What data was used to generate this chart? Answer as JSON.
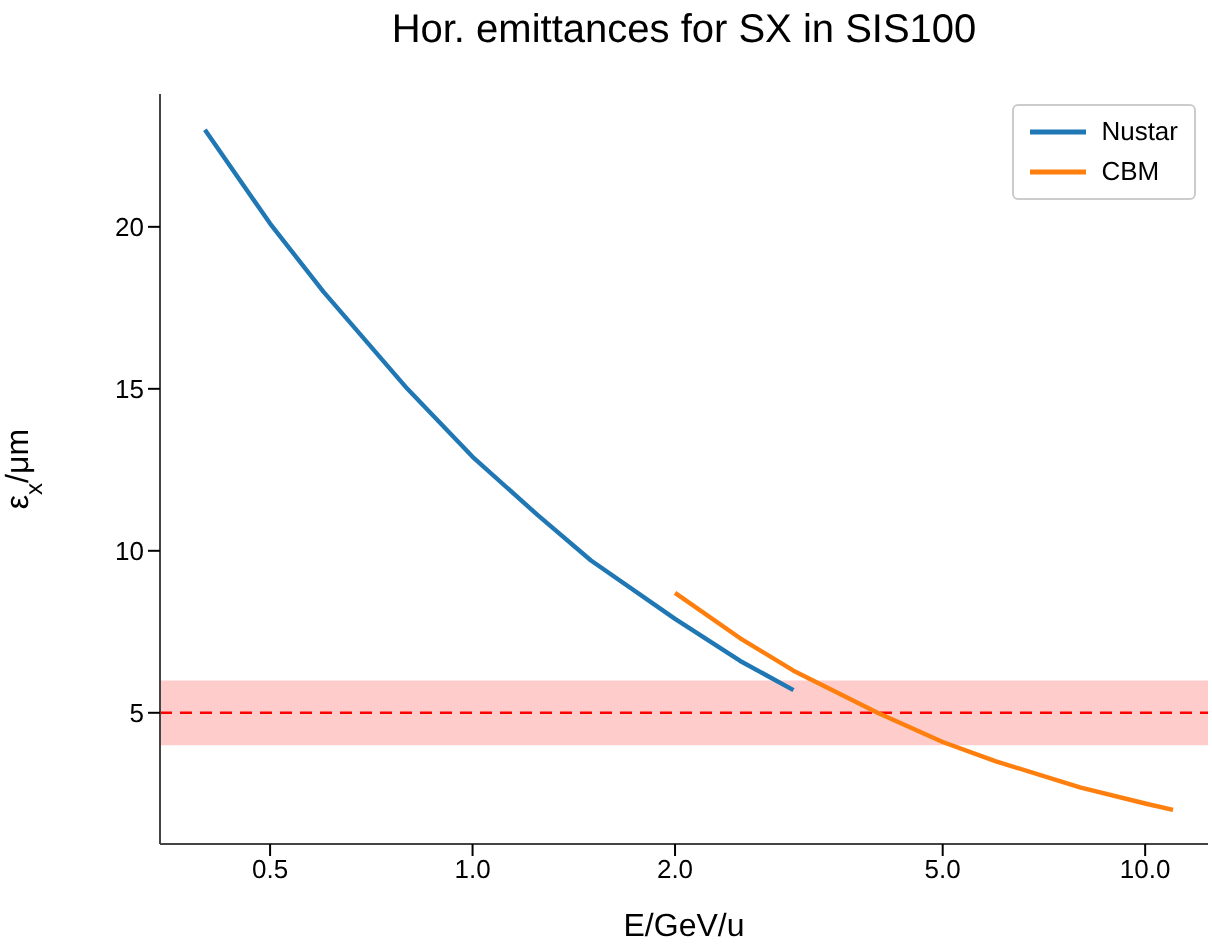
{
  "chart_data": {
    "type": "line",
    "title": "Hor. emittances for SX in SIS100",
    "xlabel": "E/GeV/u",
    "ylabel": "ε$_{x}$/μm",
    "log": "x",
    "xlim": [
      0.343,
      12.4
    ],
    "xticks": [
      {
        "value": 0.5,
        "label": "0.5"
      },
      {
        "value": 1,
        "label": "1.0"
      },
      {
        "value": 2,
        "label": "2.0"
      },
      {
        "value": 5,
        "label": "5.0"
      },
      {
        "value": 10,
        "label": "10.0"
      }
    ],
    "ylim": [
      0.95,
      24.1
    ],
    "yticks": [
      5,
      10,
      15,
      20
    ],
    "grid": false,
    "legend": "top right",
    "marker": "none",
    "line_style": "solid",
    "series": [
      {
        "name": "Nustar",
        "color": "#1f77b4",
        "x": [
          0.4,
          0.5,
          0.6,
          0.8,
          1.0,
          1.25,
          1.5,
          2.0,
          2.5,
          3.0
        ],
        "values": [
          23.0,
          20.1,
          18.0,
          15.0,
          12.9,
          11.1,
          9.7,
          7.9,
          6.6,
          5.7
        ]
      },
      {
        "name": "CBM",
        "color": "#ff7f0e",
        "x": [
          2.0,
          2.5,
          3.0,
          4.0,
          5.0,
          6.0,
          8.0,
          10.0,
          11.0
        ],
        "values": [
          8.7,
          7.3,
          6.3,
          5.0,
          4.1,
          3.5,
          2.7,
          2.2,
          2.0
        ]
      }
    ],
    "bands": [
      {
        "axis": "y",
        "from": 4,
        "to": 6,
        "color": "#ffcccc"
      }
    ],
    "ref_lines": [
      {
        "axis": "y",
        "value": 5,
        "color": "#ff0000",
        "line_style": "dashed"
      }
    ]
  }
}
